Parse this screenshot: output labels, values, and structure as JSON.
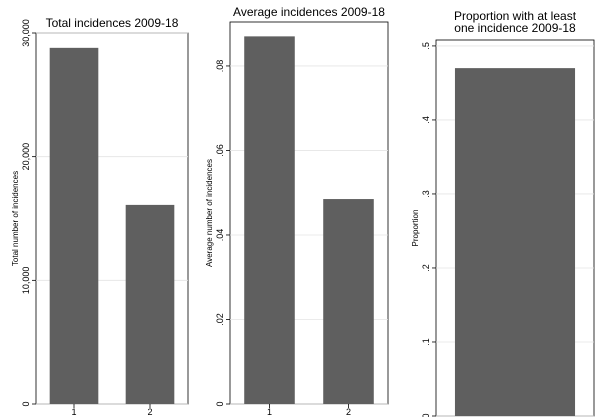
{
  "chart_data": [
    {
      "type": "bar",
      "title": "Total incidences 2009-18",
      "y_label": "Total number of incidences",
      "categories": [
        "1",
        "2"
      ],
      "values": [
        28800,
        16100
      ],
      "color": "#5f5f5f",
      "ylim": [
        0,
        30000
      ],
      "yticks": [
        0,
        {
          "value": 10000,
          "label": "10,000"
        },
        {
          "value": 20000,
          "label": "20,000"
        },
        {
          "value": 30000,
          "label": "30,000"
        }
      ],
      "grid": true
    },
    {
      "type": "bar",
      "title": "Average incidences 2009-18",
      "y_label": "Average number of incidences",
      "categories": [
        "1",
        "2"
      ],
      "values": [
        0.087,
        0.0485
      ],
      "color": "#5f5f5f",
      "ylim": [
        0,
        0.0904
      ],
      "yticks": [
        0,
        {
          "value": 0.02,
          "label": ".02"
        },
        {
          "value": 0.04,
          "label": ".04"
        },
        {
          "value": 0.06,
          "label": ".06"
        },
        {
          "value": 0.08,
          "label": ".08"
        }
      ],
      "grid": true
    },
    {
      "type": "bar",
      "title": [
        "Proportion with at least",
        "one incidence 2009-18"
      ],
      "y_label": "Proportion",
      "categories": [
        null
      ],
      "values": [
        0.47
      ],
      "color": "#5f5f5f",
      "ylim": [
        0,
        0.508
      ],
      "yticks": [
        0,
        {
          "value": 0.1,
          "label": ".1"
        },
        {
          "value": 0.2,
          "label": ".2"
        },
        {
          "value": 0.3,
          "label": ".3"
        },
        {
          "value": 0.4,
          "label": ".4"
        },
        {
          "value": 0.5,
          "label": ".5"
        }
      ],
      "grid": true
    }
  ]
}
